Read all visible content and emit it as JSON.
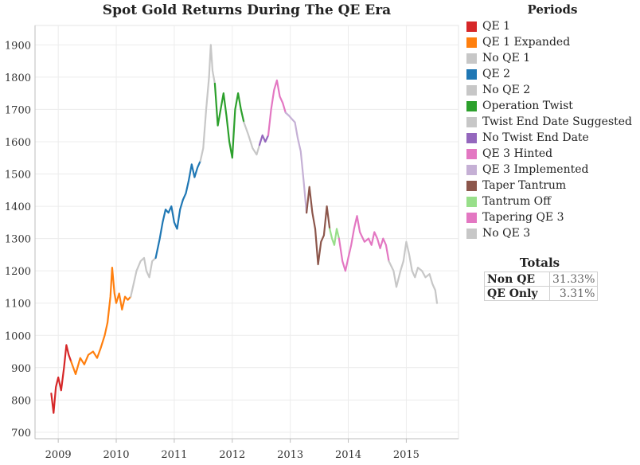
{
  "title": "Spot Gold Returns During The QE Era",
  "legend": {
    "title": "Periods",
    "items": [
      {
        "label": "QE 1",
        "color": "#d62728"
      },
      {
        "label": "QE 1 Expanded",
        "color": "#ff7f0e"
      },
      {
        "label": "No QE 1",
        "color": "#c7c7c7"
      },
      {
        "label": "QE 2",
        "color": "#1f77b4"
      },
      {
        "label": "No QE 2",
        "color": "#c7c7c7"
      },
      {
        "label": "Operation Twist",
        "color": "#2ca02c"
      },
      {
        "label": "Twist End Date Suggested",
        "color": "#c7c7c7"
      },
      {
        "label": "No Twist End Date",
        "color": "#9467bd"
      },
      {
        "label": "QE 3 Hinted",
        "color": "#e377c2"
      },
      {
        "label": "QE 3 Implemented",
        "color": "#c5b0d5"
      },
      {
        "label": "Taper Tantrum",
        "color": "#8c564b"
      },
      {
        "label": "Tantrum Off",
        "color": "#98df8a"
      },
      {
        "label": "Tapering QE 3",
        "color": "#e377c2"
      },
      {
        "label": "No QE 3",
        "color": "#c7c7c7"
      }
    ]
  },
  "totals": {
    "title": "Totals",
    "rows": [
      {
        "label": "Non QE",
        "value": "31.33%"
      },
      {
        "label": "QE Only",
        "value": "3.31%"
      }
    ]
  },
  "chart_data": {
    "type": "line",
    "title": "Spot Gold Returns During The QE Era",
    "xlabel": "",
    "ylabel": "",
    "xlim": [
      2008.6,
      2015.9
    ],
    "ylim": [
      680,
      1960
    ],
    "x_ticks": [
      2009,
      2010,
      2011,
      2012,
      2013,
      2014,
      2015
    ],
    "x_tick_labels": [
      "2009",
      "2010",
      "2011",
      "2012",
      "2013",
      "2014",
      "2015"
    ],
    "y_ticks": [
      700,
      800,
      900,
      1000,
      1100,
      1200,
      1300,
      1400,
      1500,
      1600,
      1700,
      1800,
      1900
    ],
    "y_tick_labels": [
      "700",
      "800",
      "900",
      "1000",
      "1100",
      "1200",
      "1300",
      "1400",
      "1500",
      "1600",
      "1700",
      "1800",
      "1900"
    ],
    "grid": true,
    "series": [
      {
        "name": "QE 1",
        "color": "#d62728",
        "x": [
          2008.88,
          2008.92,
          2008.96,
          2009.0,
          2009.05,
          2009.1,
          2009.14,
          2009.18,
          2009.22
        ],
        "y": [
          820,
          760,
          840,
          870,
          830,
          900,
          970,
          940,
          920
        ]
      },
      {
        "name": "QE 1 Expanded",
        "color": "#ff7f0e",
        "x": [
          2009.22,
          2009.3,
          2009.38,
          2009.45,
          2009.52,
          2009.6,
          2009.67,
          2009.73,
          2009.8,
          2009.85,
          2009.9,
          2009.93,
          2009.97,
          2010.0,
          2010.05,
          2010.1,
          2010.15,
          2010.2,
          2010.25
        ],
        "y": [
          920,
          880,
          930,
          910,
          940,
          950,
          930,
          960,
          1000,
          1040,
          1120,
          1210,
          1130,
          1100,
          1130,
          1080,
          1120,
          1110,
          1120
        ]
      },
      {
        "name": "No QE 1",
        "color": "#c7c7c7",
        "x": [
          2010.25,
          2010.3,
          2010.35,
          2010.42,
          2010.48,
          2010.52,
          2010.57,
          2010.62,
          2010.68
        ],
        "y": [
          1120,
          1160,
          1200,
          1230,
          1240,
          1200,
          1180,
          1230,
          1240
        ]
      },
      {
        "name": "QE 2",
        "color": "#1f77b4",
        "x": [
          2010.68,
          2010.75,
          2010.8,
          2010.85,
          2010.9,
          2010.95,
          2011.0,
          2011.05,
          2011.1,
          2011.15,
          2011.2,
          2011.25,
          2011.3,
          2011.35,
          2011.4,
          2011.45
        ],
        "y": [
          1240,
          1300,
          1350,
          1390,
          1380,
          1400,
          1350,
          1330,
          1390,
          1420,
          1440,
          1480,
          1530,
          1490,
          1520,
          1540
        ]
      },
      {
        "name": "No QE 2",
        "color": "#c7c7c7",
        "x": [
          2011.45,
          2011.5,
          2011.55,
          2011.6,
          2011.63,
          2011.66,
          2011.7
        ],
        "y": [
          1540,
          1580,
          1700,
          1800,
          1900,
          1820,
          1780
        ]
      },
      {
        "name": "Operation Twist",
        "color": "#2ca02c",
        "x": [
          2011.7,
          2011.75,
          2011.8,
          2011.85,
          2011.9,
          2011.95,
          2012.0,
          2012.05,
          2012.1,
          2012.15,
          2012.2
        ],
        "y": [
          1780,
          1650,
          1700,
          1750,
          1680,
          1600,
          1550,
          1700,
          1750,
          1700,
          1660
        ]
      },
      {
        "name": "Twist End Date Suggested",
        "color": "#c7c7c7",
        "x": [
          2012.2,
          2012.28,
          2012.35,
          2012.42,
          2012.47
        ],
        "y": [
          1660,
          1620,
          1580,
          1560,
          1590
        ]
      },
      {
        "name": "No Twist End Date",
        "color": "#9467bd",
        "x": [
          2012.47,
          2012.52,
          2012.57,
          2012.62
        ],
        "y": [
          1590,
          1620,
          1600,
          1620
        ]
      },
      {
        "name": "QE 3 Hinted",
        "color": "#e377c2",
        "x": [
          2012.62,
          2012.67,
          2012.72,
          2012.77,
          2012.82,
          2012.87,
          2012.92
        ],
        "y": [
          1620,
          1700,
          1760,
          1790,
          1740,
          1720,
          1690
        ]
      },
      {
        "name": "QE 3 Implemented",
        "color": "#c5b0d5",
        "x": [
          2012.92,
          2012.98,
          2013.03,
          2013.08,
          2013.13,
          2013.18,
          2013.23,
          2013.28
        ],
        "y": [
          1690,
          1680,
          1670,
          1660,
          1610,
          1570,
          1480,
          1380
        ]
      },
      {
        "name": "Taper Tantrum",
        "color": "#8c564b",
        "x": [
          2013.28,
          2013.33,
          2013.38,
          2013.43,
          2013.48,
          2013.53,
          2013.58,
          2013.63,
          2013.68
        ],
        "y": [
          1380,
          1460,
          1380,
          1330,
          1220,
          1290,
          1310,
          1400,
          1330
        ]
      },
      {
        "name": "Tantrum Off",
        "color": "#98df8a",
        "x": [
          2013.68,
          2013.72,
          2013.76,
          2013.8,
          2013.84
        ],
        "y": [
          1330,
          1300,
          1280,
          1330,
          1300
        ]
      },
      {
        "name": "Tapering QE 3",
        "color": "#e377c2",
        "x": [
          2013.84,
          2013.9,
          2013.95,
          2014.0,
          2014.05,
          2014.1,
          2014.15,
          2014.2,
          2014.28,
          2014.35,
          2014.4,
          2014.45,
          2014.5,
          2014.55,
          2014.6,
          2014.65,
          2014.7
        ],
        "y": [
          1300,
          1230,
          1200,
          1240,
          1280,
          1330,
          1370,
          1320,
          1290,
          1300,
          1280,
          1320,
          1300,
          1270,
          1300,
          1280,
          1230
        ]
      },
      {
        "name": "No QE 3",
        "color": "#c7c7c7",
        "x": [
          2014.7,
          2014.78,
          2014.83,
          2014.9,
          2014.95,
          2015.0,
          2015.05,
          2015.1,
          2015.15,
          2015.2,
          2015.27,
          2015.33,
          2015.4,
          2015.45,
          2015.5,
          2015.53
        ],
        "y": [
          1230,
          1200,
          1150,
          1200,
          1230,
          1290,
          1250,
          1200,
          1180,
          1210,
          1200,
          1180,
          1190,
          1160,
          1140,
          1100
        ]
      }
    ]
  }
}
